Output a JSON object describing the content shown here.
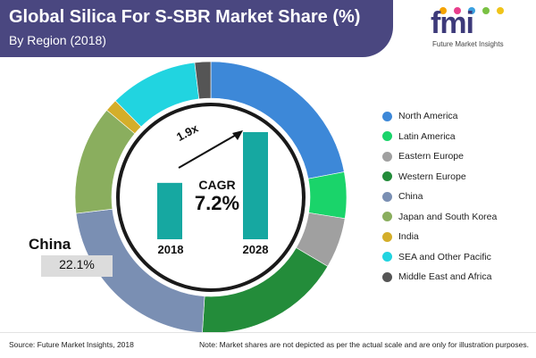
{
  "header": {
    "title": "Global Silica For S-SBR Market Share (%)",
    "subtitle": "By Region (2018)"
  },
  "logo": {
    "word": "fmi",
    "tagline": "Future Market Insights",
    "dot_colors": [
      "#f5a300",
      "#e83e8c",
      "#3aa0e0",
      "#7ac143",
      "#f0c419"
    ]
  },
  "callout": {
    "region": "China",
    "value": "22.1%"
  },
  "inset": {
    "cagr_label": "CAGR",
    "cagr_value": "7.2%",
    "growth_label": "1.9x",
    "bar_color": "#16a8a1",
    "bars": [
      {
        "year": "2018",
        "value": 1.0
      },
      {
        "year": "2028",
        "value": 1.9
      }
    ]
  },
  "footer": {
    "source": "Source: Future Market Insights, 2018",
    "note": "Note: Market shares are not depicted as per the actual scale and are only for illustration purposes."
  },
  "chart_data": {
    "type": "pie",
    "style": "donut",
    "title": "Global Silica For S-SBR Market Share (%)",
    "subtitle": "By Region (2018)",
    "legend_position": "right",
    "labels": [
      "North America",
      "Latin America",
      "Eastern Europe",
      "Western Europe",
      "China",
      "Japan and South Korea",
      "India",
      "SEA and Other Pacific",
      "Middle East and Africa"
    ],
    "values": [
      22.0,
      5.5,
      6.0,
      17.5,
      22.1,
      13.0,
      1.5,
      10.5,
      1.9
    ],
    "colors": [
      "#3d88d8",
      "#1ad46a",
      "#a0a0a0",
      "#238c3a",
      "#7a8fb3",
      "#8aae5e",
      "#d4ae2a",
      "#21d4e0",
      "#555555"
    ],
    "annotations": [
      {
        "label": "China",
        "value": "22.1%"
      }
    ]
  }
}
